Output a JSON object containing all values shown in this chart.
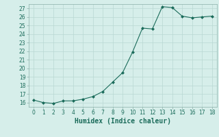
{
  "x": [
    0,
    1,
    2,
    3,
    4,
    5,
    6,
    7,
    8,
    9,
    10,
    11,
    12,
    13,
    14,
    15,
    16,
    17,
    18
  ],
  "y": [
    16.3,
    16.0,
    15.9,
    16.2,
    16.2,
    16.4,
    16.7,
    17.3,
    18.4,
    19.5,
    21.9,
    24.7,
    24.6,
    27.2,
    27.1,
    26.1,
    25.9,
    26.0,
    26.1
  ],
  "line_color": "#1a6b5a",
  "marker": "D",
  "marker_size": 2.0,
  "bg_color": "#d6eeea",
  "grid_color": "#b8d8d2",
  "xlabel": "Humidex (Indice chaleur)",
  "xlim": [
    -0.5,
    18.5
  ],
  "ylim": [
    15.5,
    27.5
  ],
  "xticks": [
    0,
    1,
    2,
    3,
    4,
    5,
    6,
    7,
    8,
    9,
    10,
    11,
    12,
    13,
    14,
    15,
    16,
    17,
    18
  ],
  "yticks": [
    16,
    17,
    18,
    19,
    20,
    21,
    22,
    23,
    24,
    25,
    26,
    27
  ],
  "tick_label_fontsize": 5.5,
  "xlabel_fontsize": 7.0,
  "tick_color": "#1a6b5a",
  "spine_color": "#8ab0a8"
}
